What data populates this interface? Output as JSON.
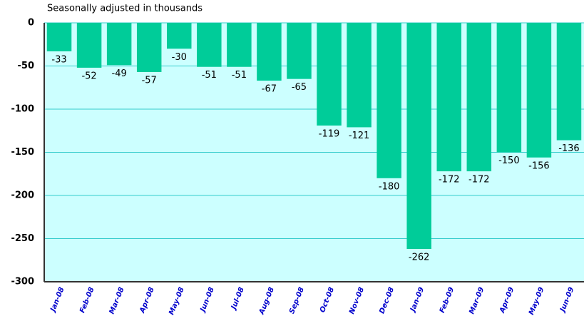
{
  "chart_data": {
    "type": "bar",
    "subtitle": "Seasonally adjusted in thousands",
    "categories": [
      "Jan-08",
      "Feb-08",
      "Mar-08",
      "Apr-08",
      "May-08",
      "Jun-08",
      "Jul-08",
      "Aug-08",
      "Sep-08",
      "Oct-08",
      "Nov-08",
      "Dec-08",
      "Jan-09",
      "Feb-09",
      "Mar-09",
      "Apr-09",
      "May-09",
      "Jun-09"
    ],
    "values": [
      -33,
      -52,
      -49,
      -57,
      -30,
      -51,
      -51,
      -67,
      -65,
      -119,
      -121,
      -180,
      -262,
      -172,
      -172,
      -150,
      -156,
      -136
    ],
    "color": "#00cc99",
    "ylim": [
      -300,
      0
    ],
    "yticks": [
      0,
      -50,
      -100,
      -150,
      -200,
      -250,
      -300
    ],
    "grid": true
  }
}
